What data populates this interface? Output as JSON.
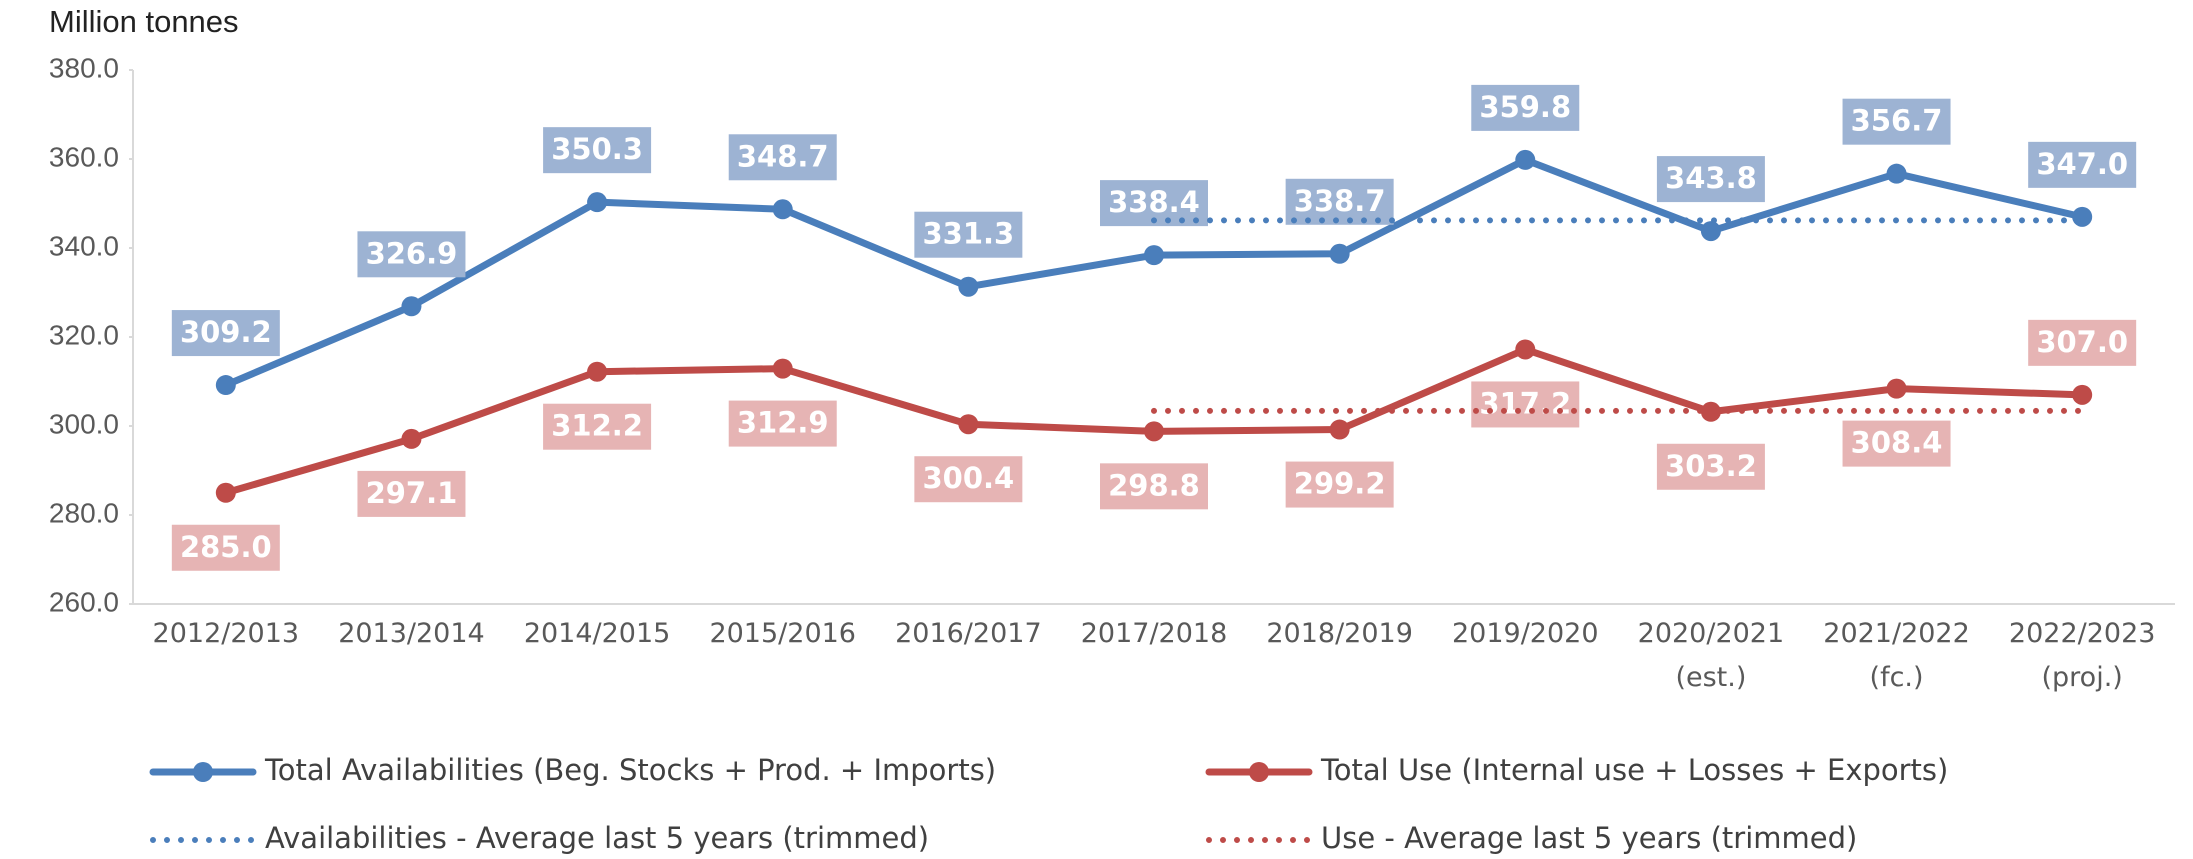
{
  "chart_data": {
    "type": "line",
    "y_label": "Million tonnes",
    "categories": [
      "2012/2013",
      "2013/2014",
      "2014/2015",
      "2015/2016",
      "2016/2017",
      "2017/2018",
      "2018/2019",
      "2019/2020",
      "2020/2021 (est.)",
      "2021/2022 (fc.)",
      "2022/2023 (proj.)"
    ],
    "series": [
      {
        "name": "Total Availabilities (Beg. Stocks + Prod. + Imports)",
        "color": "#4a7ebb",
        "style": "solid",
        "label_color": "#9db3d3",
        "values": [
          309.2,
          326.9,
          350.3,
          348.7,
          331.3,
          338.4,
          338.7,
          359.8,
          343.8,
          356.7,
          347.0
        ],
        "value_labels": [
          "309.2",
          "326.9",
          "350.3",
          "348.7",
          "331.3",
          "338.4",
          "338.7",
          "359.8",
          "343.8",
          "356.7",
          "347.0"
        ]
      },
      {
        "name": "Total Use (Internal use + Losses + Exports)",
        "color": "#be4b48",
        "style": "solid",
        "label_color": "#e6b4b4",
        "values": [
          285.0,
          297.1,
          312.2,
          312.9,
          300.4,
          298.8,
          299.2,
          317.2,
          303.2,
          308.4,
          307.0
        ],
        "value_labels": [
          "285.0",
          "297.1",
          "312.2",
          "312.9",
          "300.4",
          "298.8",
          "299.2",
          "317.2",
          "303.2",
          "308.4",
          "307.0"
        ]
      },
      {
        "name": "Availabilities - Average last 5 years (trimmed)",
        "color": "#4a7ebb",
        "style": "dotted",
        "values": [
          null,
          null,
          null,
          null,
          null,
          346.2,
          346.2,
          346.2,
          346.2,
          346.2,
          346.2
        ]
      },
      {
        "name": "Use - Average last 5 years (trimmed)",
        "color": "#be4b48",
        "style": "dotted",
        "values": [
          null,
          null,
          null,
          null,
          null,
          303.4,
          303.4,
          303.4,
          303.4,
          303.4,
          303.4
        ]
      }
    ],
    "ylim": [
      260,
      380
    ],
    "yticks": [
      {
        "value": 260,
        "label": "260.0"
      },
      {
        "value": 280,
        "label": "280.0"
      },
      {
        "value": 300,
        "label": "300.0"
      },
      {
        "value": 320,
        "label": "320.0"
      },
      {
        "value": 340,
        "label": "340.0"
      },
      {
        "value": 360,
        "label": "360.0"
      },
      {
        "value": 380,
        "label": "380.0"
      }
    ],
    "grid": false
  }
}
